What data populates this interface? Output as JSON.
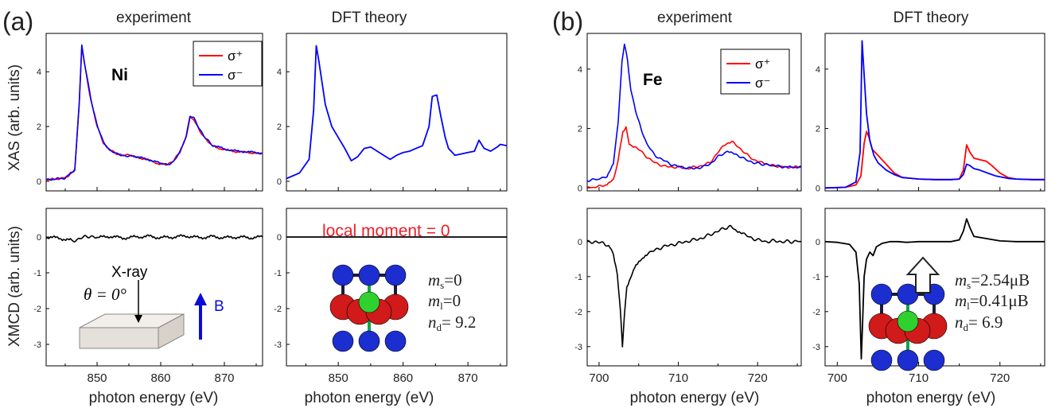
{
  "colors": {
    "sigma_plus": "#ff0000",
    "sigma_minus": "#0000ff",
    "xmcd": "#000000",
    "annotation": "#e8202a",
    "b_field": "#0b0bd8"
  },
  "panel_labels": [
    "(a)",
    "(b)"
  ],
  "column_titles": [
    "experiment",
    "DFT theory",
    "experiment",
    "DFT theory"
  ],
  "ylabel_xas": "XAS (arb. units)",
  "ylabel_xmcd": "XMCD (arb. units)",
  "xlabel": "photon energy (eV)",
  "legend": {
    "plus": "σ⁺",
    "minus": "σ⁻"
  },
  "element_labels": {
    "ni": "Ni",
    "fe": "Fe"
  },
  "annotations": {
    "local_moment": "local moment = 0",
    "xray": "X-ray",
    "theta": "θ = 0°",
    "b": "B",
    "ni": {
      "ms": "=0",
      "ml": "=0",
      "nd": "= 9.2"
    },
    "fe": {
      "ms": "=2.54μB",
      "ml": "=0.41μB",
      "nd": "= 6.9"
    }
  },
  "chart_data": [
    {
      "id": "ni_xas_exp",
      "type": "line",
      "title": "experiment",
      "ylabel": "XAS (arb. units)",
      "xlim": [
        842,
        876
      ],
      "ylim": [
        -0.35,
        5.4
      ],
      "yticks": [
        0,
        2,
        4
      ],
      "series": [
        {
          "name": "σ+",
          "x": [
            842,
            845,
            846.5,
            847.2,
            847.6,
            848,
            849,
            850,
            851,
            852,
            853,
            854,
            855,
            856,
            858,
            860,
            861,
            862,
            863,
            864,
            864.6,
            865.2,
            866,
            867,
            868,
            870,
            872,
            874,
            876
          ],
          "y": [
            0.05,
            0.12,
            0.4,
            2.8,
            4.9,
            4.3,
            3.0,
            2.0,
            1.4,
            1.15,
            1.0,
            0.97,
            0.95,
            0.9,
            0.78,
            0.62,
            0.62,
            0.75,
            1.05,
            1.65,
            2.3,
            2.25,
            1.9,
            1.55,
            1.3,
            1.15,
            1.08,
            1.05,
            1.0
          ]
        },
        {
          "name": "σ−",
          "x": [
            842,
            845,
            846.5,
            847.2,
            847.6,
            848,
            849,
            850,
            851,
            852,
            853,
            854,
            855,
            856,
            858,
            860,
            861,
            862,
            863,
            864,
            864.6,
            865.2,
            866,
            867,
            868,
            870,
            872,
            874,
            876
          ],
          "y": [
            0.05,
            0.12,
            0.42,
            2.9,
            4.95,
            4.35,
            3.05,
            2.05,
            1.42,
            1.15,
            1.0,
            0.95,
            0.92,
            0.9,
            0.8,
            0.65,
            0.6,
            0.72,
            1.05,
            1.65,
            2.4,
            2.3,
            1.95,
            1.6,
            1.33,
            1.18,
            1.1,
            1.07,
            1.02
          ]
        }
      ]
    },
    {
      "id": "ni_xas_dft",
      "type": "line",
      "title": "DFT theory",
      "xlim": [
        842,
        876
      ],
      "ylim": [
        -0.35,
        5.4
      ],
      "yticks": [
        0,
        2,
        4
      ],
      "series": [
        {
          "name": "",
          "x": [
            842,
            844,
            845.5,
            846.2,
            846.6,
            847,
            848,
            849,
            850,
            851,
            852,
            853,
            854,
            855,
            856,
            857,
            858,
            859,
            860,
            861,
            862,
            863,
            864,
            864.5,
            865.2,
            865.8,
            866.5,
            867,
            868,
            869,
            870,
            871,
            871.7,
            872.5,
            873.5,
            874.5,
            875,
            876
          ],
          "y": [
            0.1,
            0.3,
            0.8,
            2.6,
            4.95,
            4.4,
            2.8,
            2.0,
            1.6,
            1.2,
            0.75,
            0.9,
            1.2,
            1.25,
            1.1,
            0.95,
            0.8,
            0.95,
            1.05,
            1.1,
            1.2,
            1.3,
            2.0,
            3.1,
            3.15,
            2.4,
            1.6,
            1.2,
            0.95,
            1.0,
            1.05,
            1.1,
            1.5,
            1.2,
            1.1,
            1.25,
            1.35,
            1.3
          ]
        }
      ]
    },
    {
      "id": "ni_xmcd_exp",
      "type": "line",
      "ylabel": "XMCD (arb. units)",
      "xlabel": "photon energy (eV)",
      "xlim": [
        842,
        876
      ],
      "ylim": [
        -3.6,
        0.8
      ],
      "yticks": [
        0,
        -1,
        -2,
        -3
      ],
      "xticks": [
        850,
        860,
        870
      ],
      "series": [
        {
          "name": "XMCD",
          "x": [
            842,
            844,
            846,
            847,
            848,
            849,
            850,
            852,
            854,
            856,
            858,
            860,
            862,
            864,
            866,
            868,
            870,
            872,
            874,
            876
          ],
          "y": [
            0.0,
            -0.03,
            -0.1,
            -0.07,
            0.0,
            0.03,
            -0.02,
            0.02,
            -0.03,
            0.0,
            0.02,
            -0.02,
            0.0,
            0.03,
            -0.02,
            0.01,
            -0.02,
            0.0,
            -0.02,
            0.0
          ]
        }
      ]
    },
    {
      "id": "ni_xmcd_dft",
      "type": "line",
      "xlabel": "photon energy (eV)",
      "xlim": [
        842,
        876
      ],
      "ylim": [
        -3.6,
        0.8
      ],
      "yticks": [
        0,
        -1,
        -2,
        -3
      ],
      "xticks": [
        850,
        860,
        870
      ],
      "series": [
        {
          "name": "",
          "x": [
            842,
            876
          ],
          "y": [
            0,
            0
          ]
        }
      ]
    },
    {
      "id": "fe_xas_exp",
      "type": "line",
      "title": "experiment",
      "xlim": [
        698.5,
        725.5
      ],
      "ylim": [
        -0.1,
        5.2
      ],
      "yticks": [
        0,
        2,
        4
      ],
      "series": [
        {
          "name": "σ+",
          "x": [
            698.5,
            700,
            701,
            701.8,
            702.4,
            703,
            703.4,
            703.8,
            704.3,
            705,
            706,
            707,
            708,
            709,
            710,
            711,
            712,
            713,
            714,
            715,
            716,
            716.8,
            717.5,
            718.5,
            719.5,
            720.5,
            722,
            723.5,
            725.5
          ],
          "y": [
            0.0,
            0.05,
            0.1,
            0.3,
            0.9,
            1.9,
            2.05,
            1.5,
            1.4,
            1.3,
            1.05,
            0.85,
            0.75,
            0.7,
            0.7,
            0.65,
            0.7,
            0.75,
            0.85,
            1.2,
            1.5,
            1.55,
            1.4,
            1.15,
            0.95,
            0.85,
            0.75,
            0.7,
            0.7
          ]
        },
        {
          "name": "σ−",
          "x": [
            698.5,
            700,
            701,
            701.8,
            702.4,
            702.9,
            703.2,
            703.6,
            704,
            704.6,
            705.3,
            706,
            707,
            708,
            709,
            710,
            711,
            712,
            713,
            714,
            715,
            716,
            716.8,
            717.5,
            718.5,
            719.5,
            720.5,
            722,
            723.5,
            725.5
          ],
          "y": [
            0.25,
            0.3,
            0.4,
            0.8,
            2.2,
            4.3,
            4.85,
            4.3,
            3.3,
            2.6,
            2.0,
            1.5,
            1.1,
            0.95,
            0.8,
            0.72,
            0.68,
            0.65,
            0.7,
            0.8,
            1.05,
            1.2,
            1.2,
            1.1,
            0.95,
            0.85,
            0.8,
            0.75,
            0.7,
            0.7
          ]
        }
      ]
    },
    {
      "id": "fe_xas_dft",
      "type": "line",
      "title": "DFT theory",
      "xlim": [
        698.5,
        725.5
      ],
      "ylim": [
        -0.1,
        5.2
      ],
      "yticks": [
        0,
        2,
        4
      ],
      "series": [
        {
          "name": "σ+",
          "x": [
            698.5,
            701,
            702.3,
            702.9,
            703.3,
            703.6,
            703.9,
            704.3,
            705,
            706,
            707,
            708,
            710,
            712,
            714,
            715,
            715.5,
            715.9,
            716.3,
            716.8,
            717.5,
            718.3,
            719,
            720,
            721,
            722,
            724,
            725.5
          ],
          "y": [
            0.0,
            0.02,
            0.1,
            0.4,
            1.5,
            1.9,
            1.7,
            1.3,
            1.1,
            0.8,
            0.5,
            0.35,
            0.3,
            0.28,
            0.28,
            0.3,
            0.6,
            1.45,
            1.2,
            1.0,
            0.95,
            0.9,
            0.75,
            0.5,
            0.35,
            0.3,
            0.28,
            0.28
          ]
        },
        {
          "name": "σ−",
          "x": [
            698.5,
            701,
            702.3,
            702.8,
            703.05,
            703.3,
            703.6,
            704,
            704.5,
            705,
            706,
            707,
            708,
            710,
            712,
            714,
            715,
            715.5,
            715.9,
            716.3,
            716.8,
            717.5,
            718.5,
            719.5,
            721,
            722,
            724,
            725.5
          ],
          "y": [
            0.0,
            0.02,
            0.2,
            1.2,
            4.95,
            3.8,
            2.5,
            1.6,
            1.1,
            0.85,
            0.6,
            0.45,
            0.35,
            0.3,
            0.28,
            0.28,
            0.3,
            0.45,
            0.8,
            0.75,
            0.65,
            0.6,
            0.5,
            0.4,
            0.32,
            0.3,
            0.28,
            0.28
          ]
        }
      ]
    },
    {
      "id": "fe_xmcd_exp",
      "type": "line",
      "xlabel": "photon energy (eV)",
      "xlim": [
        698.5,
        725.5
      ],
      "ylim": [
        -3.55,
        0.95
      ],
      "yticks": [
        0,
        -1,
        -2,
        -3
      ],
      "xticks": [
        700,
        710,
        720
      ],
      "series": [
        {
          "name": "XMCD",
          "x": [
            698.5,
            699.5,
            700.5,
            701.2,
            701.8,
            702.3,
            702.7,
            702.95,
            703.2,
            703.5,
            704,
            704.5,
            705,
            705.5,
            706,
            707,
            708,
            709,
            710,
            711,
            712,
            713,
            714,
            715,
            716,
            716.6,
            717.2,
            718,
            719,
            720,
            721,
            722,
            723,
            724,
            725.5
          ],
          "y": [
            -0.02,
            0.0,
            -0.05,
            -0.12,
            -0.35,
            -0.9,
            -2.0,
            -3.0,
            -2.1,
            -1.3,
            -1.0,
            -0.7,
            -0.55,
            -0.45,
            -0.35,
            -0.25,
            -0.15,
            -0.1,
            -0.05,
            0.0,
            0.05,
            0.1,
            0.2,
            0.3,
            0.4,
            0.42,
            0.35,
            0.25,
            0.12,
            0.05,
            0.0,
            0.02,
            0.0,
            0.0,
            0.0
          ]
        }
      ]
    },
    {
      "id": "fe_xmcd_dft",
      "type": "line",
      "xlabel": "photon energy (eV)",
      "xlim": [
        698.5,
        725.5
      ],
      "ylim": [
        -3.55,
        0.95
      ],
      "yticks": [
        0,
        -1,
        -2,
        -3
      ],
      "xticks": [
        700,
        710,
        720
      ],
      "series": [
        {
          "name": "XMCD",
          "x": [
            698.5,
            700,
            701.5,
            702.3,
            702.7,
            702.95,
            703.1,
            703.3,
            703.6,
            704,
            704.4,
            704.8,
            705.5,
            706.5,
            707.5,
            708.5,
            710,
            712,
            714,
            715,
            715.5,
            715.9,
            716.3,
            716.8,
            717.5,
            718.5,
            720,
            722,
            725.5
          ],
          "y": [
            0.0,
            -0.02,
            -0.08,
            -0.3,
            -1.2,
            -3.35,
            -2.4,
            -1.0,
            -0.5,
            -0.3,
            -0.4,
            -0.15,
            -0.05,
            0.0,
            0.0,
            -0.02,
            0.0,
            0.0,
            0.0,
            0.05,
            0.3,
            0.65,
            0.4,
            0.15,
            0.12,
            0.08,
            0.02,
            0.0,
            0.0
          ]
        }
      ]
    }
  ]
}
